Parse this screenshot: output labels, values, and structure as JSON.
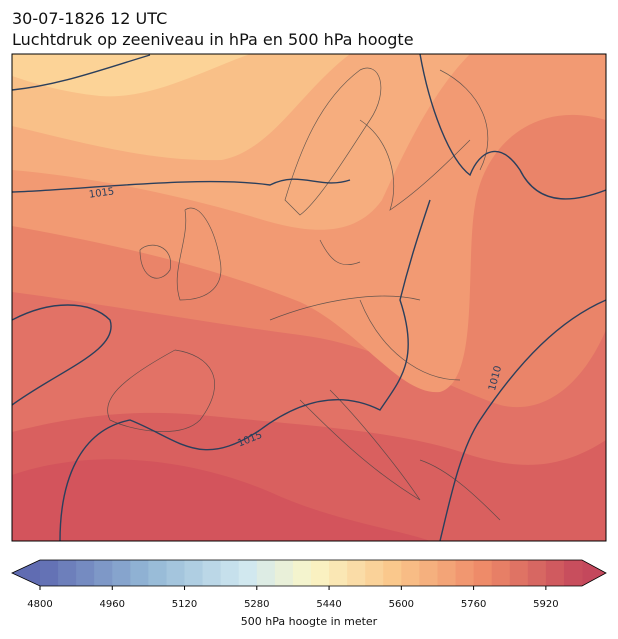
{
  "header": {
    "date": "30-07-1826 12 UTC",
    "title": "Luchtdruk op zeeniveau in hPa en 500 hPa hoogte"
  },
  "map": {
    "isobar_labels": [
      "1015",
      "1010",
      "1015"
    ]
  },
  "colorbar": {
    "label": "500 hPa hoogte in meter",
    "lim": [
      4800,
      6000
    ],
    "step": 40,
    "ticks": [
      4800,
      4960,
      5120,
      5280,
      5440,
      5600,
      5760,
      5920
    ]
  }
}
